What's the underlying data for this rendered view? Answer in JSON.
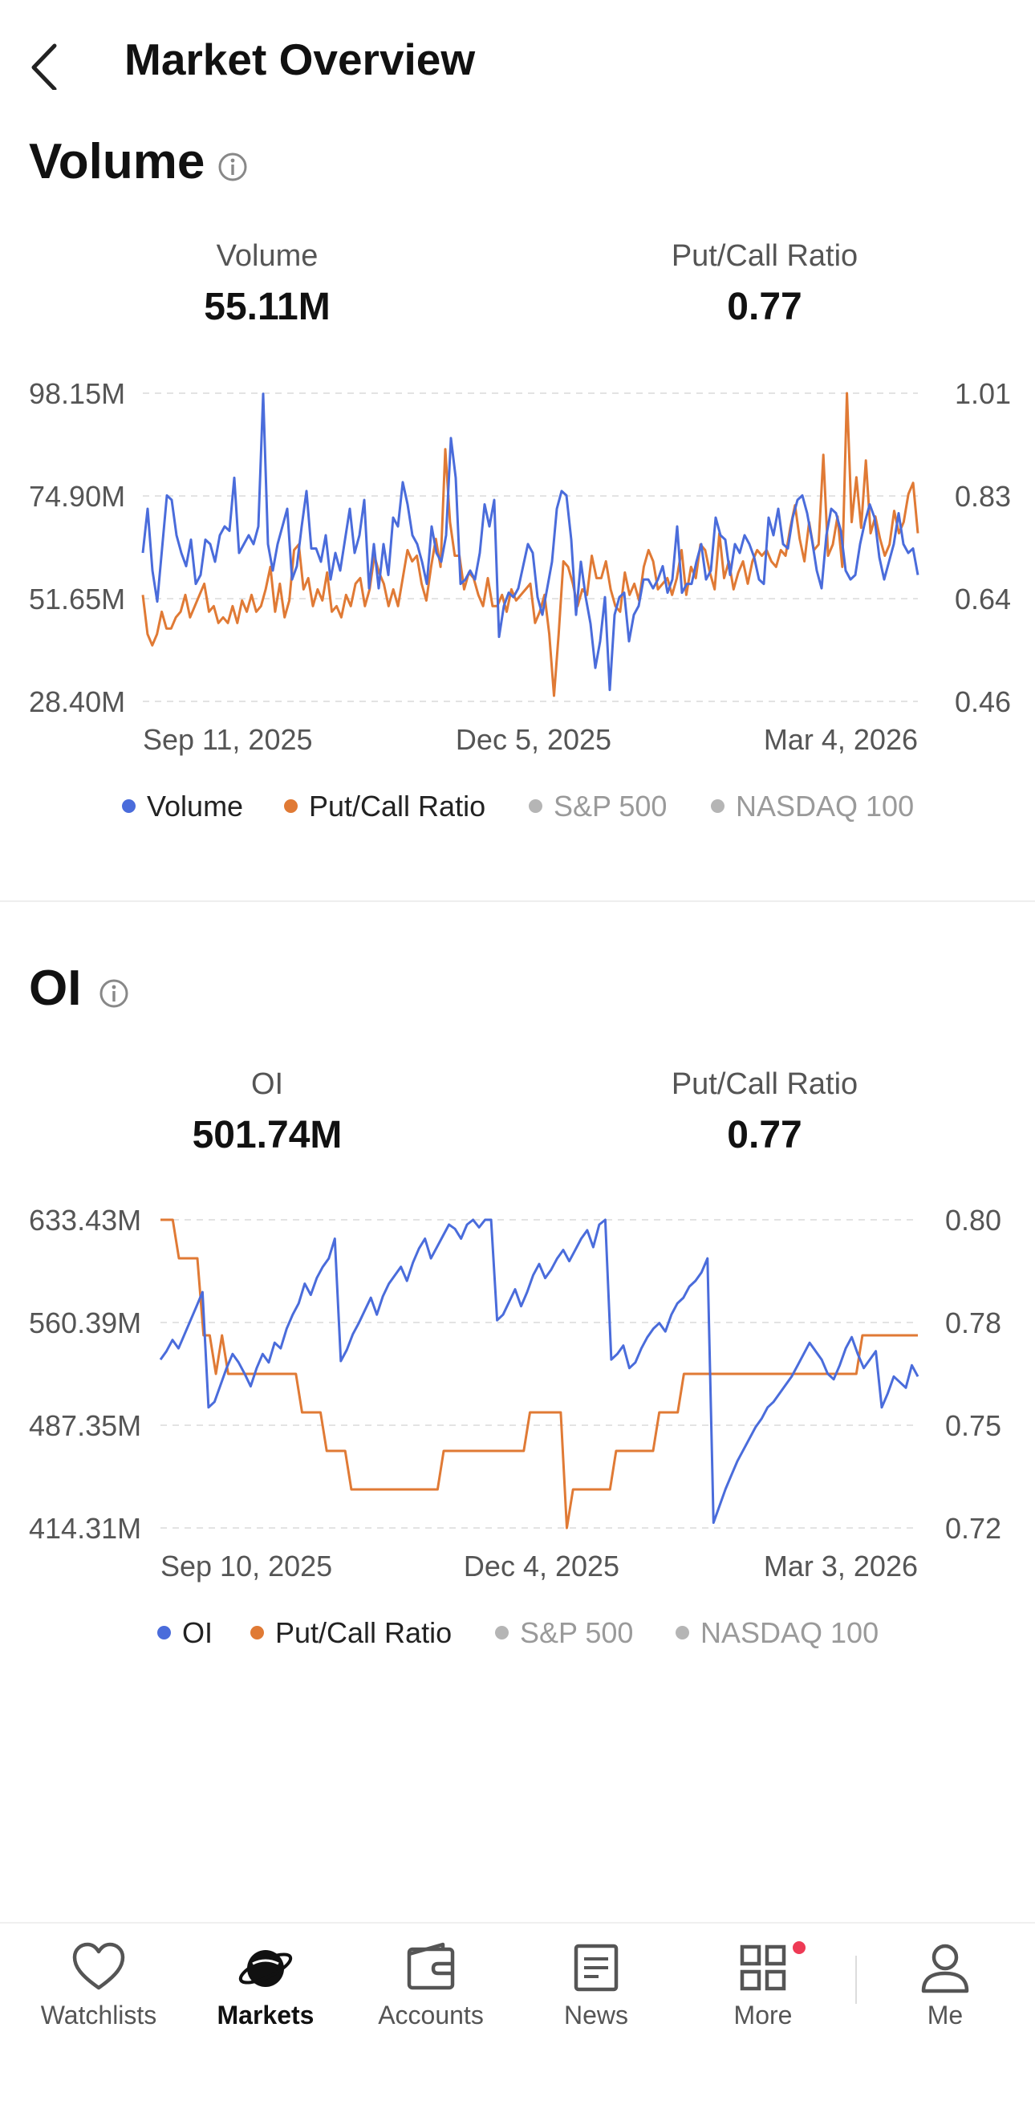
{
  "header": {
    "title": "Market Overview"
  },
  "volume_section": {
    "title": "Volume",
    "metrics": [
      {
        "label": "Volume",
        "value": "55.11M"
      },
      {
        "label": "Put/Call Ratio",
        "value": "0.77"
      }
    ],
    "legend": [
      {
        "label": "Volume",
        "color": "#4a6cdb",
        "active": true
      },
      {
        "label": "Put/Call Ratio",
        "color": "#e07a35",
        "active": true
      },
      {
        "label": "S&P 500",
        "color": "#b5b5b5",
        "active": false
      },
      {
        "label": "NASDAQ 100",
        "color": "#b5b5b5",
        "active": false
      }
    ]
  },
  "oi_section": {
    "title": "OI",
    "metrics": [
      {
        "label": "OI",
        "value": "501.74M"
      },
      {
        "label": "Put/Call Ratio",
        "value": "0.77"
      }
    ],
    "legend": [
      {
        "label": "OI",
        "color": "#4a6cdb",
        "active": true
      },
      {
        "label": "Put/Call Ratio",
        "color": "#e07a35",
        "active": true
      },
      {
        "label": "S&P 500",
        "color": "#b5b5b5",
        "active": false
      },
      {
        "label": "NASDAQ 100",
        "color": "#b5b5b5",
        "active": false
      }
    ]
  },
  "tabbar": {
    "items": [
      {
        "label": "Watchlists",
        "icon": "heart-icon",
        "active": false
      },
      {
        "label": "Markets",
        "icon": "planet-icon",
        "active": true
      },
      {
        "label": "Accounts",
        "icon": "wallet-icon",
        "active": false
      },
      {
        "label": "News",
        "icon": "news-icon",
        "active": false
      },
      {
        "label": "More",
        "icon": "grid-icon",
        "active": false,
        "badge": true
      },
      {
        "label": "Me",
        "icon": "person-icon",
        "active": false
      }
    ]
  },
  "chart_data": [
    {
      "type": "line",
      "y_left": {
        "ticks": [
          "98.15M",
          "74.90M",
          "51.65M",
          "28.40M"
        ],
        "range": [
          28.4,
          98.15
        ]
      },
      "y_right": {
        "ticks": [
          "1.01",
          "0.83",
          "0.64",
          "0.46"
        ],
        "range": [
          0.46,
          1.01
        ]
      },
      "x_ticks": [
        "Sep 11, 2025",
        "Dec 5, 2025",
        "Mar 4, 2026"
      ],
      "grid": "horizontal dashed",
      "legend_position": "bottom",
      "series": [
        {
          "name": "Volume",
          "axis": "left",
          "color": "#4a6cdb",
          "values": [
            62,
            72,
            58,
            51,
            63,
            75,
            74,
            66,
            62,
            59,
            65,
            55,
            57,
            65,
            64,
            60,
            66,
            68,
            67,
            79,
            62,
            64,
            66,
            64,
            68,
            98,
            64,
            58,
            64,
            68,
            72,
            56,
            59,
            68,
            76,
            63,
            63,
            60,
            66,
            56,
            62,
            58,
            65,
            72,
            62,
            66,
            74,
            54,
            64,
            54,
            64,
            57,
            70,
            68,
            78,
            73,
            66,
            64,
            60,
            55,
            68,
            62,
            60,
            66,
            88,
            79,
            55,
            56,
            58,
            56,
            62,
            73,
            68,
            74,
            43,
            50,
            53,
            52,
            54,
            59,
            64,
            62,
            52,
            48,
            54,
            60,
            72,
            76,
            75,
            65,
            48,
            60,
            52,
            46,
            36,
            42,
            52,
            31,
            48,
            52,
            53,
            42,
            48,
            50,
            56,
            56,
            54,
            56,
            59,
            53,
            56,
            68,
            53,
            55,
            55,
            60,
            64,
            56,
            58,
            70,
            66,
            65,
            57,
            64,
            62,
            66,
            64,
            61,
            56,
            55,
            70,
            66,
            72,
            64,
            63,
            70,
            74,
            75,
            71,
            65,
            58,
            54,
            66,
            72,
            71,
            67,
            58,
            56,
            57,
            64,
            69,
            73,
            70,
            61,
            56,
            60,
            64,
            71,
            64,
            62,
            63,
            57
          ],
          "note": "values in millions (approx.)"
        },
        {
          "name": "Put/Call Ratio",
          "axis": "right",
          "color": "#e07a35",
          "values": [
            0.65,
            0.58,
            0.56,
            0.58,
            0.62,
            0.59,
            0.59,
            0.61,
            0.62,
            0.65,
            0.61,
            0.63,
            0.65,
            0.67,
            0.62,
            0.63,
            0.6,
            0.61,
            0.6,
            0.63,
            0.6,
            0.64,
            0.62,
            0.65,
            0.62,
            0.63,
            0.66,
            0.7,
            0.62,
            0.67,
            0.61,
            0.64,
            0.73,
            0.74,
            0.66,
            0.68,
            0.63,
            0.66,
            0.64,
            0.69,
            0.62,
            0.63,
            0.61,
            0.65,
            0.63,
            0.67,
            0.68,
            0.63,
            0.66,
            0.72,
            0.69,
            0.67,
            0.63,
            0.66,
            0.63,
            0.68,
            0.73,
            0.71,
            0.72,
            0.67,
            0.64,
            0.7,
            0.75,
            0.7,
            0.91,
            0.78,
            0.72,
            0.72,
            0.66,
            0.69,
            0.68,
            0.65,
            0.63,
            0.68,
            0.63,
            0.63,
            0.65,
            0.62,
            0.66,
            0.64,
            0.65,
            0.66,
            0.67,
            0.6,
            0.62,
            0.65,
            0.58,
            0.47,
            0.58,
            0.71,
            0.7,
            0.67,
            0.63,
            0.66,
            0.65,
            0.72,
            0.68,
            0.68,
            0.71,
            0.66,
            0.63,
            0.62,
            0.69,
            0.65,
            0.67,
            0.64,
            0.7,
            0.73,
            0.71,
            0.66,
            0.67,
            0.68,
            0.65,
            0.68,
            0.73,
            0.65,
            0.7,
            0.68,
            0.74,
            0.73,
            0.69,
            0.66,
            0.76,
            0.68,
            0.71,
            0.66,
            0.69,
            0.71,
            0.67,
            0.71,
            0.73,
            0.72,
            0.73,
            0.71,
            0.7,
            0.73,
            0.72,
            0.77,
            0.81,
            0.75,
            0.71,
            0.78,
            0.73,
            0.74,
            0.9,
            0.72,
            0.74,
            0.79,
            0.7,
            1.01,
            0.78,
            0.86,
            0.77,
            0.89,
            0.76,
            0.79,
            0.75,
            0.72,
            0.74,
            0.8,
            0.76,
            0.78,
            0.83,
            0.85,
            0.76
          ]
        }
      ]
    },
    {
      "type": "line",
      "y_left": {
        "ticks": [
          "633.43M",
          "560.39M",
          "487.35M",
          "414.31M"
        ],
        "range": [
          414.31,
          633.43
        ]
      },
      "y_right": {
        "ticks": [
          "0.80",
          "0.78",
          "0.75",
          "0.72"
        ],
        "range": [
          0.72,
          0.8
        ]
      },
      "x_ticks": [
        "Sep 10, 2025",
        "Dec 4, 2025",
        "Mar 3, 2026"
      ],
      "grid": "horizontal dashed",
      "legend_position": "bottom",
      "series": [
        {
          "name": "OI",
          "axis": "left",
          "color": "#4a6cdb",
          "values": [
            534,
            540,
            548,
            542,
            552,
            562,
            572,
            582,
            500,
            504,
            516,
            528,
            538,
            532,
            524,
            515,
            528,
            538,
            532,
            546,
            542,
            556,
            566,
            574,
            588,
            580,
            592,
            600,
            606,
            620,
            533,
            541,
            552,
            560,
            569,
            578,
            566,
            579,
            588,
            594,
            600,
            590,
            603,
            613,
            620,
            606,
            614,
            622,
            630,
            627,
            620,
            630,
            640,
            628,
            644,
            654,
            562,
            566,
            575,
            584,
            572,
            582,
            594,
            602,
            592,
            598,
            606,
            612,
            604,
            612,
            620,
            626,
            614,
            630,
            640,
            534,
            538,
            544,
            528,
            532,
            542,
            550,
            556,
            560,
            554,
            566,
            574,
            578,
            586,
            590,
            596,
            606,
            418,
            430,
            442,
            452,
            462,
            470,
            478,
            486,
            492,
            500,
            504,
            510,
            516,
            522,
            530,
            538,
            546,
            540,
            534,
            524,
            520,
            530,
            542,
            550,
            538,
            528,
            534,
            540,
            500,
            510,
            522,
            518,
            514,
            530,
            522
          ],
          "note": "values in millions (approx.)"
        },
        {
          "name": "Put/Call Ratio",
          "axis": "right",
          "color": "#e07a35",
          "values": [
            0.8,
            0.8,
            0.8,
            0.79,
            0.79,
            0.79,
            0.79,
            0.77,
            0.77,
            0.76,
            0.77,
            0.76,
            0.76,
            0.76,
            0.76,
            0.76,
            0.76,
            0.76,
            0.76,
            0.76,
            0.76,
            0.76,
            0.76,
            0.75,
            0.75,
            0.75,
            0.75,
            0.74,
            0.74,
            0.74,
            0.74,
            0.73,
            0.73,
            0.73,
            0.73,
            0.73,
            0.73,
            0.73,
            0.73,
            0.73,
            0.73,
            0.73,
            0.73,
            0.73,
            0.73,
            0.73,
            0.74,
            0.74,
            0.74,
            0.74,
            0.74,
            0.74,
            0.74,
            0.74,
            0.74,
            0.74,
            0.74,
            0.74,
            0.74,
            0.74,
            0.75,
            0.75,
            0.75,
            0.75,
            0.75,
            0.75,
            0.72,
            0.73,
            0.73,
            0.73,
            0.73,
            0.73,
            0.73,
            0.73,
            0.74,
            0.74,
            0.74,
            0.74,
            0.74,
            0.74,
            0.74,
            0.75,
            0.75,
            0.75,
            0.75,
            0.76,
            0.76,
            0.76,
            0.76,
            0.76,
            0.76,
            0.76,
            0.76,
            0.76,
            0.76,
            0.76,
            0.76,
            0.76,
            0.76,
            0.76,
            0.76,
            0.76,
            0.76,
            0.76,
            0.76,
            0.76,
            0.76,
            0.76,
            0.76,
            0.76,
            0.76,
            0.76,
            0.76,
            0.76,
            0.77,
            0.77,
            0.77,
            0.77,
            0.77,
            0.77,
            0.77,
            0.77,
            0.77,
            0.77
          ]
        }
      ]
    }
  ]
}
